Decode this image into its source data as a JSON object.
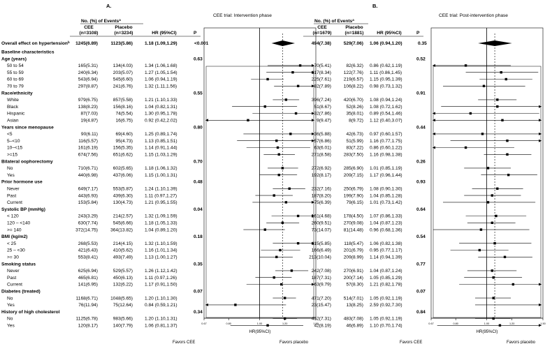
{
  "chart_data": {
    "type": "forest",
    "panel_labels": [
      "A.",
      "B."
    ],
    "panels": [
      {
        "title": "CEE trial:  Intervention phase",
        "events_header": "No. (%) of Events",
        "events_sup": "a",
        "col_cee": "CEE",
        "col_cee_n": "(n=3108)",
        "col_pbo": "Placebo",
        "col_pbo_n": "(n=3234)",
        "col_hr": "HR (95%CI)",
        "col_p": "P",
        "axis_label": "HR(95%CI)",
        "xticks": [
          "0.67",
          "0.80",
          "1.00",
          "1.20",
          "1.50"
        ],
        "xlim": [
          0.67,
          1.5
        ],
        "ref_line": 1.0,
        "overall_hr": 1.18,
        "favors_left": "Favors CEE",
        "favors_right": "Favors placebo"
      },
      {
        "title": "CEE trial:  Post-intervention phase",
        "events_header": "No. (%) of Events",
        "events_sup": "a",
        "col_cee": "CEE",
        "col_cee_n": "(n=1679)",
        "col_pbo": "Placebo",
        "col_pbo_n": "(n=1881)",
        "col_hr": "HR (95%CI)",
        "col_p": "P",
        "axis_label": "HR(95%CI)",
        "xticks": [
          "0.67",
          "0.80",
          "1.00",
          "1.20",
          "1.50"
        ],
        "xlim": [
          0.67,
          1.5
        ],
        "ref_line": 1.0,
        "overall_hr": 1.06,
        "favors_left": "Favors CEE",
        "favors_right": "Favors placebo"
      }
    ],
    "rows": [
      {
        "kind": "overall",
        "label": "Overall effect on hypertension",
        "sup": "b",
        "a": {
          "cee": "1245(6.89)",
          "pbo": "1123(5.86)",
          "hr_text": "1.18 (1.09,1.29)",
          "p": "<0.001",
          "hr": 1.18,
          "lo": 1.09,
          "hi": 1.29
        },
        "b": {
          "cee": "494(7.38)",
          "pbo": "529(7.06)",
          "hr_text": "1.06 (0.94,1.20)",
          "p": "0.35",
          "hr": 1.06,
          "lo": 0.94,
          "hi": 1.2
        }
      },
      {
        "kind": "section",
        "label": "Baseline characteristics"
      },
      {
        "kind": "header",
        "label": "Age (years)",
        "p_a": "0.63",
        "p_b": "0.52"
      },
      {
        "kind": "row",
        "label": "50 to 54",
        "a": {
          "cee": "165(5.31)",
          "pbo": "134(4.03)",
          "hr_text": "1.34 (1.06,1.68)",
          "hr": 1.34,
          "lo": 1.06,
          "hi": 1.68
        },
        "b": {
          "cee": "70(5.41)",
          "pbo": "82(6.32)",
          "hr_text": "0.86 (0.62,1.19)",
          "hr": 0.86,
          "lo": 0.62,
          "hi": 1.19
        }
      },
      {
        "kind": "row",
        "label": "55 to 59",
        "a": {
          "cee": "240(6.34)",
          "pbo": "203(5.07)",
          "hr_text": "1.27 (1.05,1.54)",
          "hr": 1.27,
          "lo": 1.05,
          "hi": 1.54
        },
        "b": {
          "cee": "117(8.34)",
          "pbo": "122(7.76)",
          "hr_text": "1.11 (0.86,1.45)",
          "hr": 1.11,
          "lo": 0.86,
          "hi": 1.45
        }
      },
      {
        "kind": "row",
        "label": "60 to 69",
        "a": {
          "cee": "543(6.94)",
          "pbo": "545(6.60)",
          "hr_text": "1.06 (0.94,1.19)",
          "hr": 1.06,
          "lo": 0.94,
          "hi": 1.19
        },
        "b": {
          "cee": "225(7.61)",
          "pbo": "219(6.57)",
          "hr_text": "1.15 (0.95,1.39)",
          "hr": 1.15,
          "lo": 0.95,
          "hi": 1.39
        }
      },
      {
        "kind": "row",
        "label": "70 to 79",
        "a": {
          "cee": "297(8.87)",
          "pbo": "241(6.76)",
          "hr_text": "1.32 (1.11,1.56)",
          "hr": 1.32,
          "lo": 1.11,
          "hi": 1.56
        },
        "b": {
          "cee": "82(7.89)",
          "pbo": "106(8.22)",
          "hr_text": "0.98 (0.73,1.32)",
          "hr": 0.98,
          "lo": 0.73,
          "hi": 1.32
        }
      },
      {
        "kind": "header",
        "label": "Race/ethnicity",
        "p_a": "0.55",
        "p_b": "0.91"
      },
      {
        "kind": "row",
        "label": "White",
        "a": {
          "cee": "979(6.75)",
          "pbo": "857(5.58)",
          "hr_text": "1.21 (1.10,1.33)",
          "hr": 1.21,
          "lo": 1.1,
          "hi": 1.33
        },
        "b": {
          "cee": "396(7.24)",
          "pbo": "420(6.70)",
          "hr_text": "1.08 (0.94,1.24)",
          "hr": 1.08,
          "lo": 0.94,
          "hi": 1.24
        }
      },
      {
        "kind": "row",
        "label": "Black",
        "a": {
          "cee": "138(8.23)",
          "pbo": "156(8.16)",
          "hr_text": "1.04 (0.82,1.31)",
          "hr": 1.04,
          "lo": 0.82,
          "hi": 1.31
        },
        "b": {
          "cee": "51(8.67)",
          "pbo": "52(8.26)",
          "hr_text": "1.08 (0.72,1.62)",
          "hr": 1.08,
          "lo": 0.72,
          "hi": 1.62
        }
      },
      {
        "kind": "row",
        "label": "Hispanic",
        "a": {
          "cee": "87(7.03)",
          "pbo": "74(5.54)",
          "hr_text": "1.30 (0.95,1.78)",
          "hr": 1.3,
          "lo": 0.95,
          "hi": 1.78
        },
        "b": {
          "cee": "32(7.86)",
          "pbo": "35(8.01)",
          "hr_text": "0.89 (0.54,1.46)",
          "hr": 0.89,
          "lo": 0.54,
          "hi": 1.46
        }
      },
      {
        "kind": "row",
        "label": "Asian",
        "a": {
          "cee": "19(4.87)",
          "pbo": "16(6.75)",
          "hr_text": "0.92 (0.42,2.02)",
          "hr": 0.92,
          "lo": 0.42,
          "hi": 2.02
        },
        "b": {
          "cee": "9(9.47)",
          "pbo": "8(9.72)",
          "hr_text": "1.12 (0.40,3.07)",
          "hr": 1.12,
          "lo": 0.4,
          "hi": 3.07
        }
      },
      {
        "kind": "header",
        "label": "Years since menopause",
        "p_a": "0.80",
        "p_b": "0.44"
      },
      {
        "kind": "row",
        "label": "<5",
        "a": {
          "cee": "90(6.11)",
          "pbo": "69(4.60)",
          "hr_text": "1.25 (0.89,1.74)",
          "hr": 1.25,
          "lo": 0.89,
          "hi": 1.74
        },
        "b": {
          "cee": "36(5.88)",
          "pbo": "42(6.73)",
          "hr_text": "0.97 (0.60,1.57)",
          "hr": 0.97,
          "lo": 0.6,
          "hi": 1.57
        }
      },
      {
        "kind": "row",
        "label": "5–<10",
        "a": {
          "cee": "116(5.57)",
          "pbo": "95(4.73)",
          "hr_text": "1.13 (0.85,1.51)",
          "hr": 1.13,
          "lo": 0.85,
          "hi": 1.51
        },
        "b": {
          "cee": "57(6.86)",
          "pbo": "51(5.99)",
          "hr_text": "1.16 (0.77,1.75)",
          "hr": 1.16,
          "lo": 0.77,
          "hi": 1.75
        }
      },
      {
        "kind": "row",
        "label": "10–<15",
        "a": {
          "cee": "161(6.19)",
          "pbo": "156(5.35)",
          "hr_text": "1.14 (0.91,1.44)",
          "hr": 1.14,
          "lo": 0.91,
          "hi": 1.44
        },
        "b": {
          "cee": "63(6.01)",
          "pbo": "83(7.22)",
          "hr_text": "0.86 (0.60,1.22)",
          "hr": 0.86,
          "lo": 0.6,
          "hi": 1.22
        }
      },
      {
        "kind": "row",
        "label": ">=15",
        "a": {
          "cee": "674(7.56)",
          "pbo": "651(6.62)",
          "hr_text": "1.15 (1.03,1.29)",
          "hr": 1.15,
          "lo": 1.03,
          "hi": 1.29
        },
        "b": {
          "cee": "271(8.58)",
          "pbo": "283(7.50)",
          "hr_text": "1.16 (0.98,1.38)",
          "hr": 1.16,
          "lo": 0.98,
          "hi": 1.38
        }
      },
      {
        "kind": "header",
        "label": "Bilateral oophorectomy",
        "p_a": "0.70",
        "p_b": "0.26"
      },
      {
        "kind": "row",
        "label": "No",
        "a": {
          "cee": "710(6.71)",
          "pbo": "602(5.65)",
          "hr_text": "1.18 (1.06,1.32)",
          "hr": 1.18,
          "lo": 1.06,
          "hi": 1.32
        },
        "b": {
          "cee": "272(6.92)",
          "pbo": "285(6.90)",
          "hr_text": "1.01 (0.85,1.19)",
          "hr": 1.01,
          "lo": 0.85,
          "hi": 1.19
        }
      },
      {
        "kind": "row",
        "label": "Yes",
        "a": {
          "cee": "440(6.98)",
          "pbo": "437(6.06)",
          "hr_text": "1.15 (1.00,1.31)",
          "hr": 1.15,
          "lo": 1.0,
          "hi": 1.31
        },
        "b": {
          "cee": "192(8.17)",
          "pbo": "209(7.15)",
          "hr_text": "1.17 (0.96,1.44)",
          "hr": 1.17,
          "lo": 0.96,
          "hi": 1.44
        }
      },
      {
        "kind": "header",
        "label": "Prior hormone use",
        "p_a": "0.48",
        "p_b": "0.93"
      },
      {
        "kind": "row",
        "label": "Never",
        "a": {
          "cee": "649(7.17)",
          "pbo": "553(5.87)",
          "hr_text": "1.24 (1.10,1.39)",
          "hr": 1.24,
          "lo": 1.1,
          "hi": 1.39
        },
        "b": {
          "cee": "232(7.16)",
          "pbo": "250(6.79)",
          "hr_text": "1.08 (0.90,1.30)",
          "hr": 1.08,
          "lo": 0.9,
          "hi": 1.3
        }
      },
      {
        "kind": "row",
        "label": "Past",
        "a": {
          "cee": "443(6.93)",
          "pbo": "439(6.30)",
          "hr_text": "1.11 (0.97,1.27)",
          "hr": 1.11,
          "lo": 0.97,
          "hi": 1.27
        },
        "b": {
          "cee": "187(8.20)",
          "pbo": "199(7.90)",
          "hr_text": "1.04 (0.85,1.28)",
          "hr": 1.04,
          "lo": 0.85,
          "hi": 1.28
        }
      },
      {
        "kind": "row",
        "label": "Current",
        "a": {
          "cee": "153(5.84)",
          "pbo": "130(4.73)",
          "hr_text": "1.21 (0.95,1.55)",
          "hr": 1.21,
          "lo": 0.95,
          "hi": 1.55
        },
        "b": {
          "cee": "75(6.39)",
          "pbo": "79(6.15)",
          "hr_text": "1.01 (0.73,1.42)",
          "hr": 1.01,
          "lo": 0.73,
          "hi": 1.42
        }
      },
      {
        "kind": "header",
        "label": "Systolic BP (mmHg)",
        "p_a": "0.04",
        "p_b": "0.64"
      },
      {
        "kind": "row",
        "label": "< 120",
        "a": {
          "cee": "243(3.29)",
          "pbo": "214(2.57)",
          "hr_text": "1.32 (1.09,1.59)",
          "hr": 1.32,
          "lo": 1.09,
          "hi": 1.59
        },
        "b": {
          "cee": "161(4.68)",
          "pbo": "178(4.50)",
          "hr_text": "1.07 (0.86,1.33)",
          "hr": 1.07,
          "lo": 0.86,
          "hi": 1.33
        }
      },
      {
        "kind": "row",
        "label": "120 – <140",
        "a": {
          "cee": "630(7.74)",
          "pbo": "545(6.66)",
          "hr_text": "1.18 (1.05,1.33)",
          "hr": 1.18,
          "lo": 1.05,
          "hi": 1.33
        },
        "b": {
          "cee": "260(9.51)",
          "pbo": "270(9.08)",
          "hr_text": "1.04 (0.87,1.23)",
          "hr": 1.04,
          "lo": 0.87,
          "hi": 1.23
        }
      },
      {
        "kind": "row",
        "label": ">= 140",
        "a": {
          "cee": "372(14.75)",
          "pbo": "364(13.82)",
          "hr_text": "1.04 (0.89,1.20)",
          "hr": 1.04,
          "lo": 0.89,
          "hi": 1.2
        },
        "b": {
          "cee": "73(14.07)",
          "pbo": "81(14.48)",
          "hr_text": "0.96 (0.68,1.36)",
          "hr": 0.96,
          "lo": 0.68,
          "hi": 1.36
        }
      },
      {
        "kind": "header",
        "label": "BMI (kg/m2)",
        "p_a": "0.18",
        "p_b": "0.54"
      },
      {
        "kind": "row",
        "label": "< 25",
        "a": {
          "cee": "268(5.53)",
          "pbo": "214(4.15)",
          "hr_text": "1.32 (1.10,1.59)",
          "hr": 1.32,
          "lo": 1.1,
          "hi": 1.59
        },
        "b": {
          "cee": "115(5.85)",
          "pbo": "118(5.47)",
          "hr_text": "1.06 (0.82,1.38)",
          "hr": 1.06,
          "lo": 0.82,
          "hi": 1.38
        }
      },
      {
        "kind": "row",
        "label": "25 – <30",
        "a": {
          "cee": "421(6.43)",
          "pbo": "410(5.62)",
          "hr_text": "1.16 (1.01,1.34)",
          "hr": 1.16,
          "lo": 1.01,
          "hi": 1.34
        },
        "b": {
          "cee": "166(6.49)",
          "pbo": "201(6.79)",
          "hr_text": "0.95 (0.77,1.17)",
          "hr": 0.95,
          "lo": 0.77,
          "hi": 1.17
        }
      },
      {
        "kind": "row",
        "label": ">= 30",
        "a": {
          "cee": "553(8.41)",
          "pbo": "493(7.49)",
          "hr_text": "1.13 (1.00,1.27)",
          "hr": 1.13,
          "lo": 1.0,
          "hi": 1.27
        },
        "b": {
          "cee": "213(10.04)",
          "pbo": "209(8.99)",
          "hr_text": "1.14 (0.94,1.39)",
          "hr": 1.14,
          "lo": 0.94,
          "hi": 1.39
        }
      },
      {
        "kind": "header",
        "label": "Smoking status",
        "p_a": "0.35",
        "p_b": "0.77"
      },
      {
        "kind": "row",
        "label": "Never",
        "a": {
          "cee": "625(6.94)",
          "pbo": "529(5.57)",
          "hr_text": "1.26 (1.12,1.42)",
          "hr": 1.26,
          "lo": 1.12,
          "hi": 1.42
        },
        "b": {
          "cee": "242(7.08)",
          "pbo": "270(6.91)",
          "hr_text": "1.04 (0.87,1.24)",
          "hr": 1.04,
          "lo": 0.87,
          "hi": 1.24
        }
      },
      {
        "kind": "row",
        "label": "Past",
        "a": {
          "cee": "465(6.81)",
          "pbo": "450(6.13)",
          "hr_text": "1.11 (0.97,1.26)",
          "hr": 1.11,
          "lo": 0.97,
          "hi": 1.26
        },
        "b": {
          "cee": "187(7.31)",
          "pbo": "200(7.14)",
          "hr_text": "1.05 (0.85,1.29)",
          "hr": 1.05,
          "lo": 0.85,
          "hi": 1.29
        }
      },
      {
        "kind": "row",
        "label": "Current",
        "a": {
          "cee": "141(6.95)",
          "pbo": "132(6.22)",
          "hr_text": "1.17 (0.91,1.50)",
          "hr": 1.17,
          "lo": 0.91,
          "hi": 1.5
        },
        "b": {
          "cee": "63(9.79)",
          "pbo": "57(8.30)",
          "hr_text": "1.21 (0.82,1.78)",
          "hr": 1.21,
          "lo": 0.82,
          "hi": 1.78
        }
      },
      {
        "kind": "header",
        "label": "Diabetes (treated)",
        "p_a": "0.07",
        "p_b": "0.07"
      },
      {
        "kind": "row",
        "label": "No",
        "a": {
          "cee": "1168(6.71)",
          "pbo": "1048(5.65)",
          "hr_text": "1.20 (1.10,1.30)",
          "hr": 1.2,
          "lo": 1.1,
          "hi": 1.3
        },
        "b": {
          "cee": "471(7.20)",
          "pbo": "514(7.01)",
          "hr_text": "1.05 (0.92,1.19)",
          "hr": 1.05,
          "lo": 0.92,
          "hi": 1.19
        }
      },
      {
        "kind": "row",
        "label": "Yes",
        "a": {
          "cee": "76(11.94)",
          "pbo": "75(12.64)",
          "hr_text": "0.84 (0.59,1.21)",
          "hr": 0.84,
          "lo": 0.59,
          "hi": 1.21
        },
        "b": {
          "cee": "23(15.47)",
          "pbo": "13(8.25)",
          "hr_text": "2.59 (0.92,7.30)",
          "hr": 2.59,
          "lo": 0.92,
          "hi": 7.3
        }
      },
      {
        "kind": "header",
        "label": "History of high cholesterol",
        "p_a": "0.34",
        "p_b": "0.84"
      },
      {
        "kind": "row",
        "label": "No",
        "a": {
          "cee": "1125(6.78)",
          "pbo": "983(5.66)",
          "hr_text": "1.20 (1.10,1.31)",
          "hr": 1.2,
          "lo": 1.1,
          "hi": 1.31
        },
        "b": {
          "cee": "452(7.31)",
          "pbo": "483(7.08)",
          "hr_text": "1.05 (0.92,1.19)",
          "hr": 1.05,
          "lo": 0.92,
          "hi": 1.19
        }
      },
      {
        "kind": "row",
        "label": "Yes",
        "a": {
          "cee": "120(8.17)",
          "pbo": "140(7.79)",
          "hr_text": "1.06 (0.81,1.37)",
          "hr": 1.06,
          "lo": 0.81,
          "hi": 1.37
        },
        "b": {
          "cee": "42(8.19)",
          "pbo": "46(6.89)",
          "hr_text": "1.10 (0.70,1.74)",
          "hr": 1.1,
          "lo": 0.7,
          "hi": 1.74
        }
      }
    ]
  }
}
